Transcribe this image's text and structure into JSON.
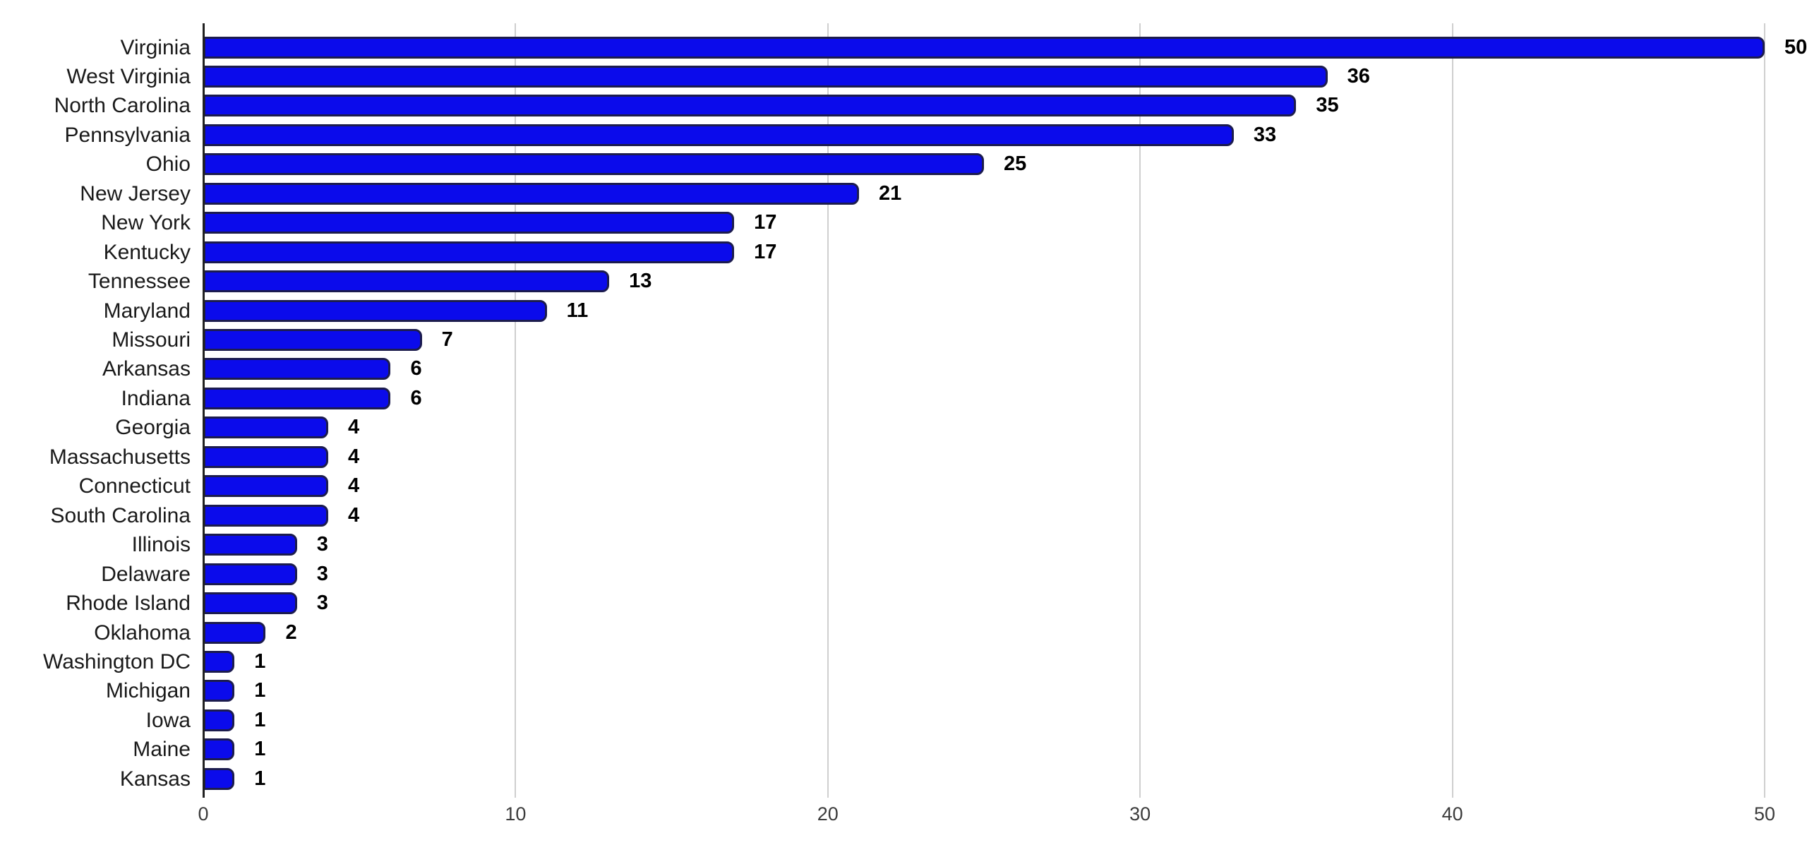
{
  "chart_data": {
    "type": "bar",
    "orientation": "horizontal",
    "title": "",
    "xlabel": "",
    "ylabel": "",
    "categories": [
      "Virginia",
      "West Virginia",
      "North Carolina",
      "Pennsylvania",
      "Ohio",
      "New Jersey",
      "New York",
      "Kentucky",
      "Tennessee",
      "Maryland",
      "Missouri",
      "Arkansas",
      "Indiana",
      "Georgia",
      "Massachusetts",
      "Connecticut",
      "South Carolina",
      "Illinois",
      "Delaware",
      "Rhode Island",
      "Oklahoma",
      "Washington DC",
      "Michigan",
      "Iowa",
      "Maine",
      "Kansas"
    ],
    "values": [
      50,
      36,
      35,
      33,
      25,
      21,
      17,
      17,
      13,
      11,
      7,
      6,
      6,
      4,
      4,
      4,
      4,
      3,
      3,
      3,
      2,
      1,
      1,
      1,
      1,
      1
    ],
    "value_labels": [
      "50",
      "36",
      "35",
      "33",
      "25",
      "21",
      "17",
      "17",
      "13",
      "11",
      "7",
      "6",
      "6",
      "4",
      "4",
      "4",
      "4",
      "3",
      "3",
      "3",
      "2",
      "1",
      "1",
      "1",
      "1",
      "1"
    ],
    "x_ticks": [
      "0",
      "10",
      "20",
      "30",
      "40",
      "50"
    ],
    "xlim": [
      0,
      50
    ],
    "grid": "vertical-gridlines-on",
    "legend": false,
    "colors": {
      "bar_fill": "#0b0beb",
      "bar_border": "#1c1c4e",
      "gridline": "#cfcfcf",
      "axis_line": "#212121",
      "category_label": "#1a1a1a",
      "value_label": "#000000",
      "tick_label": "#3c3c3c",
      "background": "#ffffff"
    }
  }
}
